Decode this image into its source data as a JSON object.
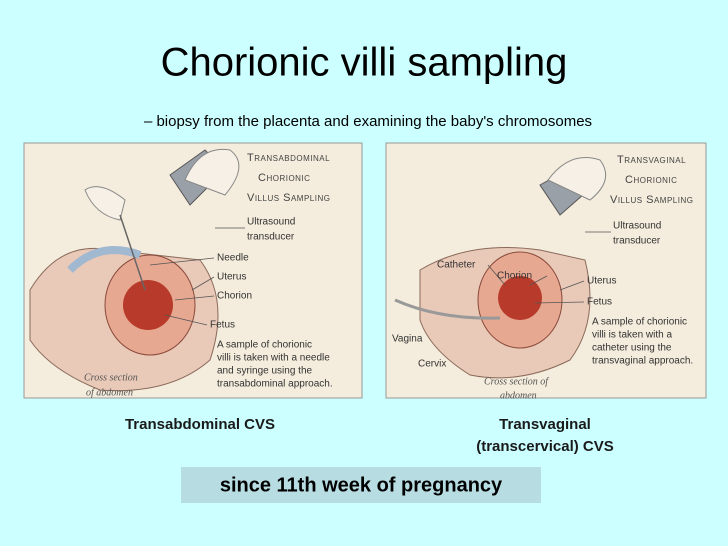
{
  "title": "Chorionic villi sampling",
  "subtitle": "– biopsy from the placenta and examining the baby's chromosomes",
  "figures": [
    {
      "heading": [
        "Transabdominal",
        "Chorionic",
        "Villus Sampling"
      ],
      "labels": {
        "transducer": [
          "Ultrasound",
          "transducer"
        ],
        "needle": "Needle",
        "uterus": "Uterus",
        "chorion": "Chorion",
        "fetus": "Fetus"
      },
      "note": [
        "A sample of chorionic",
        "villi is taken with a needle",
        "and syringe using the",
        "transabdominal approach."
      ],
      "section": [
        "Cross section",
        "of abdomen"
      ],
      "caption": [
        "Transabdominal CVS"
      ]
    },
    {
      "heading": [
        "Transvaginal",
        "Chorionic",
        "Villus Sampling"
      ],
      "labels": {
        "transducer": [
          "Ultrasound",
          "transducer"
        ],
        "catheter": "Catheter",
        "chorion": "Chorion",
        "uterus": "Uterus",
        "fetus": "Fetus",
        "vagina": "Vagina",
        "cervix": "Cervix"
      },
      "note": [
        "A sample of chorionic",
        "villi is taken with a",
        "catheter using the",
        "transvaginal approach."
      ],
      "section": [
        "Cross section of",
        "abdomen"
      ],
      "caption": [
        "Transvaginal",
        "(transcervical) CVS"
      ]
    }
  ],
  "banner": "since 11th week of pregnancy"
}
